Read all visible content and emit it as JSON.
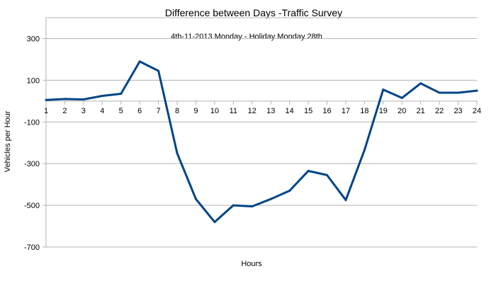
{
  "chart_data": {
    "type": "line",
    "title": "Difference between Days -Traffic Survey",
    "subtitle": "4th-11-2013 Monday - Holiday Monday 28th",
    "xlabel": "Hours",
    "ylabel": "Vehicles per Hour",
    "ylim": [
      -700,
      400
    ],
    "yticks": [
      300,
      100,
      -100,
      -300,
      -500,
      -700
    ],
    "ytick_labels": [
      "300",
      "100",
      "-100",
      "-300",
      "-500",
      "-700"
    ],
    "x": [
      1,
      2,
      3,
      4,
      5,
      6,
      7,
      8,
      9,
      10,
      11,
      12,
      13,
      14,
      15,
      16,
      17,
      18,
      19,
      20,
      21,
      22,
      23,
      24
    ],
    "x_labels": [
      "1",
      "2",
      "3",
      "4",
      "5",
      "6",
      "7",
      "8",
      "9",
      "10",
      "11",
      "12",
      "13",
      "14",
      "15",
      "16",
      "17",
      "18",
      "19",
      "20",
      "21",
      "22",
      "23",
      "24"
    ],
    "series": [
      {
        "values": [
          5,
          10,
          8,
          25,
          35,
          190,
          145,
          -250,
          -470,
          -580,
          -500,
          -505,
          -470,
          -430,
          -335,
          -355,
          -475,
          -235,
          55,
          15,
          85,
          40,
          40,
          50
        ]
      }
    ],
    "grid": true,
    "line_color": "#004586"
  }
}
